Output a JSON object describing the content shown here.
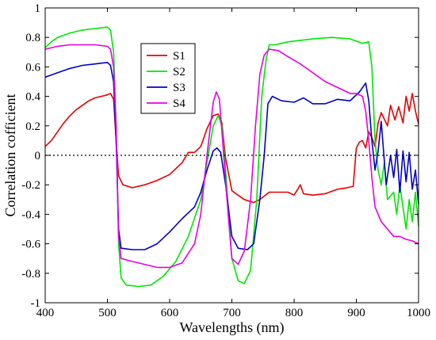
{
  "chart_data": {
    "type": "line",
    "xlabel": "Wavelengths (nm)",
    "ylabel": "Correlation cofficient",
    "xlim": [
      400,
      1000
    ],
    "ylim": [
      -1,
      1
    ],
    "xticks": [
      "400",
      "500",
      "600",
      "700",
      "800",
      "900",
      "1000"
    ],
    "yticks": [
      "1",
      "0.8",
      "0.6",
      "0.4",
      "0.2",
      "0",
      "-0.2",
      "-0.4",
      "-0.6",
      "-0.8",
      "-1"
    ],
    "xtick_values": [
      400,
      500,
      600,
      700,
      800,
      900,
      1000
    ],
    "ytick_values": [
      1,
      0.8,
      0.6,
      0.4,
      0.2,
      0,
      -0.2,
      -0.4,
      -0.6,
      -0.8,
      -1
    ],
    "reference_line": {
      "y": 0,
      "style": "dotted",
      "color": "#000000"
    },
    "grid": false,
    "legend_position": "upper-left-inside",
    "series": [
      {
        "name": "S1",
        "color": "#e60000",
        "points": [
          [
            400,
            0.06
          ],
          [
            410,
            0.1
          ],
          [
            420,
            0.16
          ],
          [
            430,
            0.22
          ],
          [
            440,
            0.27
          ],
          [
            450,
            0.31
          ],
          [
            460,
            0.34
          ],
          [
            470,
            0.37
          ],
          [
            480,
            0.39
          ],
          [
            490,
            0.4
          ],
          [
            500,
            0.41
          ],
          [
            505,
            0.42
          ],
          [
            510,
            0.38
          ],
          [
            514,
            0.1
          ],
          [
            518,
            -0.14
          ],
          [
            525,
            -0.2
          ],
          [
            540,
            -0.22
          ],
          [
            560,
            -0.2
          ],
          [
            580,
            -0.17
          ],
          [
            600,
            -0.13
          ],
          [
            620,
            -0.05
          ],
          [
            630,
            0.02
          ],
          [
            640,
            0.02
          ],
          [
            650,
            0.06
          ],
          [
            660,
            0.18
          ],
          [
            670,
            0.27
          ],
          [
            678,
            0.28
          ],
          [
            684,
            0.22
          ],
          [
            690,
            -0.02
          ],
          [
            700,
            -0.24
          ],
          [
            720,
            -0.3
          ],
          [
            735,
            -0.32
          ],
          [
            745,
            -0.3
          ],
          [
            760,
            -0.25
          ],
          [
            775,
            -0.25
          ],
          [
            790,
            -0.25
          ],
          [
            800,
            -0.27
          ],
          [
            810,
            -0.2
          ],
          [
            815,
            -0.26
          ],
          [
            830,
            -0.27
          ],
          [
            850,
            -0.26
          ],
          [
            870,
            -0.23
          ],
          [
            885,
            -0.22
          ],
          [
            895,
            -0.21
          ],
          [
            900,
            0.05
          ],
          [
            905,
            0.09
          ],
          [
            910,
            0.1
          ],
          [
            915,
            0.05
          ],
          [
            920,
            0.16
          ],
          [
            925,
            0.12
          ],
          [
            930,
            0.06
          ],
          [
            935,
            0.22
          ],
          [
            940,
            0.29
          ],
          [
            950,
            0.2
          ],
          [
            955,
            0.34
          ],
          [
            962,
            0.24
          ],
          [
            968,
            0.33
          ],
          [
            975,
            0.22
          ],
          [
            980,
            0.4
          ],
          [
            985,
            0.3
          ],
          [
            990,
            0.42
          ],
          [
            995,
            0.3
          ],
          [
            1000,
            0.21
          ]
        ]
      },
      {
        "name": "S2",
        "color": "#00e600",
        "points": [
          [
            400,
            0.73
          ],
          [
            410,
            0.77
          ],
          [
            420,
            0.8
          ],
          [
            440,
            0.83
          ],
          [
            460,
            0.85
          ],
          [
            480,
            0.86
          ],
          [
            500,
            0.87
          ],
          [
            505,
            0.85
          ],
          [
            510,
            0.7
          ],
          [
            514,
            0.2
          ],
          [
            518,
            -0.6
          ],
          [
            522,
            -0.83
          ],
          [
            530,
            -0.88
          ],
          [
            550,
            -0.89
          ],
          [
            570,
            -0.88
          ],
          [
            590,
            -0.82
          ],
          [
            610,
            -0.72
          ],
          [
            630,
            -0.55
          ],
          [
            650,
            -0.3
          ],
          [
            660,
            -0.05
          ],
          [
            670,
            0.2
          ],
          [
            678,
            0.27
          ],
          [
            684,
            0.2
          ],
          [
            690,
            -0.1
          ],
          [
            700,
            -0.7
          ],
          [
            710,
            -0.85
          ],
          [
            720,
            -0.87
          ],
          [
            730,
            -0.78
          ],
          [
            740,
            -0.3
          ],
          [
            748,
            0.4
          ],
          [
            755,
            0.65
          ],
          [
            760,
            0.75
          ],
          [
            770,
            0.75
          ],
          [
            790,
            0.77
          ],
          [
            810,
            0.78
          ],
          [
            830,
            0.79
          ],
          [
            860,
            0.8
          ],
          [
            890,
            0.79
          ],
          [
            910,
            0.76
          ],
          [
            920,
            0.77
          ],
          [
            925,
            0.6
          ],
          [
            930,
            0.1
          ],
          [
            935,
            -0.1
          ],
          [
            940,
            -0.2
          ],
          [
            945,
            -0.05
          ],
          [
            950,
            -0.3
          ],
          [
            960,
            -0.25
          ],
          [
            965,
            -0.4
          ],
          [
            970,
            -0.2
          ],
          [
            980,
            -0.5
          ],
          [
            985,
            -0.3
          ],
          [
            990,
            -0.45
          ],
          [
            995,
            -0.25
          ],
          [
            1000,
            -0.48
          ]
        ]
      },
      {
        "name": "S3",
        "color": "#0000cc",
        "points": [
          [
            400,
            0.53
          ],
          [
            420,
            0.56
          ],
          [
            440,
            0.59
          ],
          [
            460,
            0.61
          ],
          [
            480,
            0.62
          ],
          [
            500,
            0.63
          ],
          [
            505,
            0.61
          ],
          [
            510,
            0.5
          ],
          [
            514,
            0.1
          ],
          [
            518,
            -0.5
          ],
          [
            522,
            -0.63
          ],
          [
            540,
            -0.64
          ],
          [
            560,
            -0.64
          ],
          [
            580,
            -0.6
          ],
          [
            600,
            -0.52
          ],
          [
            620,
            -0.43
          ],
          [
            640,
            -0.35
          ],
          [
            650,
            -0.25
          ],
          [
            660,
            -0.1
          ],
          [
            670,
            0.03
          ],
          [
            676,
            0.05
          ],
          [
            682,
            0.02
          ],
          [
            690,
            -0.2
          ],
          [
            700,
            -0.55
          ],
          [
            710,
            -0.63
          ],
          [
            725,
            -0.64
          ],
          [
            735,
            -0.6
          ],
          [
            745,
            -0.3
          ],
          [
            752,
            0.0
          ],
          [
            758,
            0.35
          ],
          [
            765,
            0.4
          ],
          [
            780,
            0.37
          ],
          [
            800,
            0.36
          ],
          [
            815,
            0.39
          ],
          [
            830,
            0.35
          ],
          [
            850,
            0.35
          ],
          [
            870,
            0.38
          ],
          [
            890,
            0.37
          ],
          [
            905,
            0.43
          ],
          [
            915,
            0.49
          ],
          [
            920,
            0.37
          ],
          [
            925,
            0.1
          ],
          [
            930,
            -0.1
          ],
          [
            935,
            0.03
          ],
          [
            940,
            0.23
          ],
          [
            948,
            -0.2
          ],
          [
            955,
            0.0
          ],
          [
            960,
            -0.15
          ],
          [
            965,
            0.04
          ],
          [
            970,
            -0.25
          ],
          [
            975,
            0.03
          ],
          [
            980,
            -0.18
          ],
          [
            985,
            0.02
          ],
          [
            990,
            -0.23
          ],
          [
            995,
            -0.1
          ],
          [
            1000,
            -0.33
          ]
        ]
      },
      {
        "name": "S4",
        "color": "#e600e6",
        "points": [
          [
            400,
            0.72
          ],
          [
            420,
            0.74
          ],
          [
            440,
            0.75
          ],
          [
            460,
            0.75
          ],
          [
            480,
            0.75
          ],
          [
            500,
            0.74
          ],
          [
            505,
            0.72
          ],
          [
            510,
            0.6
          ],
          [
            514,
            0.2
          ],
          [
            518,
            -0.55
          ],
          [
            522,
            -0.7
          ],
          [
            540,
            -0.72
          ],
          [
            560,
            -0.74
          ],
          [
            580,
            -0.76
          ],
          [
            600,
            -0.76
          ],
          [
            620,
            -0.73
          ],
          [
            640,
            -0.6
          ],
          [
            650,
            -0.4
          ],
          [
            660,
            0.0
          ],
          [
            670,
            0.36
          ],
          [
            675,
            0.43
          ],
          [
            680,
            0.38
          ],
          [
            686,
            0.05
          ],
          [
            694,
            -0.4
          ],
          [
            700,
            -0.7
          ],
          [
            710,
            -0.74
          ],
          [
            720,
            -0.65
          ],
          [
            730,
            -0.3
          ],
          [
            738,
            0.2
          ],
          [
            745,
            0.55
          ],
          [
            752,
            0.68
          ],
          [
            760,
            0.72
          ],
          [
            775,
            0.71
          ],
          [
            790,
            0.67
          ],
          [
            810,
            0.62
          ],
          [
            830,
            0.56
          ],
          [
            850,
            0.5
          ],
          [
            870,
            0.46
          ],
          [
            890,
            0.42
          ],
          [
            900,
            0.42
          ],
          [
            910,
            0.4
          ],
          [
            915,
            0.3
          ],
          [
            920,
            0.1
          ],
          [
            925,
            -0.15
          ],
          [
            930,
            -0.35
          ],
          [
            935,
            -0.4
          ],
          [
            940,
            -0.45
          ],
          [
            950,
            -0.5
          ],
          [
            960,
            -0.55
          ],
          [
            970,
            -0.55
          ],
          [
            980,
            -0.57
          ],
          [
            990,
            -0.58
          ],
          [
            1000,
            -0.6
          ]
        ]
      }
    ]
  }
}
